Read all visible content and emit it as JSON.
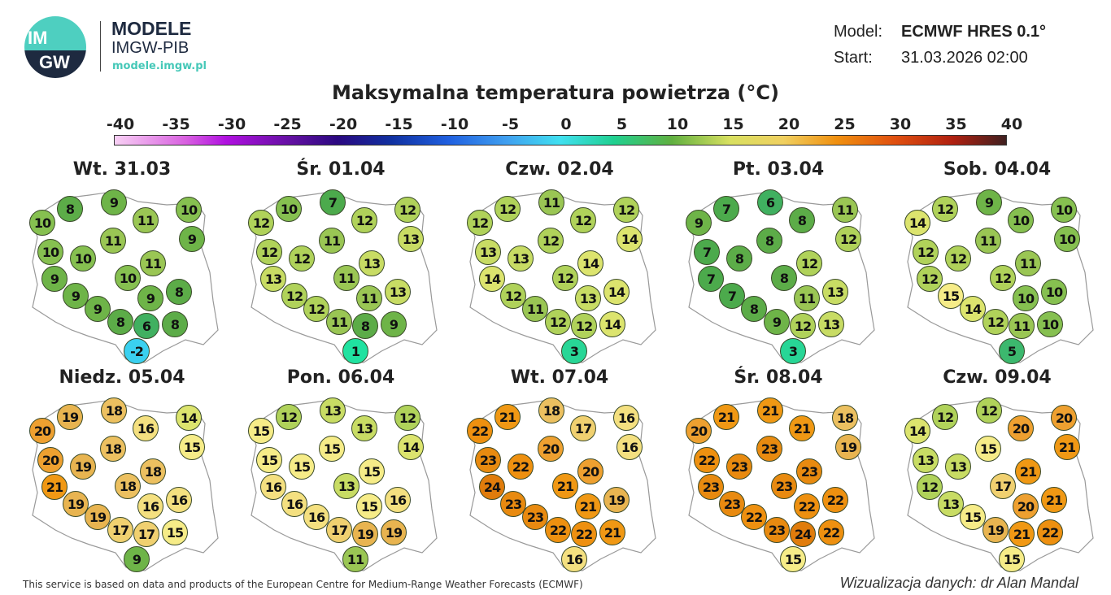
{
  "header": {
    "logo_text_top": "IM",
    "logo_text_bottom": "GW",
    "brand": "MODELE",
    "org": "IMGW-PIB",
    "url": "modele.imgw.pl",
    "model_label": "Model:",
    "model_value": "ECMWF HRES 0.1°",
    "start_label": "Start:",
    "start_value": "31.03.2026 02:00"
  },
  "title": "Maksymalna temperatura powietrza (°C)",
  "colorbar": {
    "ticks": [
      "-40",
      "-35",
      "-30",
      "-25",
      "-20",
      "-15",
      "-10",
      "-5",
      "0",
      "5",
      "10",
      "15",
      "20",
      "25",
      "30",
      "35",
      "40"
    ]
  },
  "panels": [
    {
      "label": "Wt. 31.03",
      "values": [
        8,
        9,
        10,
        11,
        10,
        11,
        9,
        10,
        10,
        11,
        9,
        10,
        9,
        9,
        8,
        9,
        8,
        6,
        8,
        -2
      ]
    },
    {
      "label": "Śr. 01.04",
      "values": [
        10,
        7,
        12,
        12,
        12,
        11,
        13,
        12,
        12,
        13,
        13,
        11,
        12,
        11,
        13,
        12,
        11,
        8,
        9,
        1
      ]
    },
    {
      "label": "Czw. 02.04",
      "values": [
        12,
        11,
        12,
        12,
        12,
        12,
        14,
        13,
        13,
        14,
        14,
        12,
        12,
        13,
        14,
        11,
        12,
        12,
        14,
        3
      ]
    },
    {
      "label": "Pt. 03.04",
      "values": [
        7,
        6,
        9,
        8,
        11,
        8,
        12,
        7,
        8,
        12,
        7,
        8,
        7,
        11,
        13,
        8,
        9,
        12,
        13,
        3
      ]
    },
    {
      "label": "Sob. 04.04",
      "values": [
        12,
        9,
        14,
        10,
        10,
        11,
        10,
        12,
        12,
        11,
        12,
        12,
        15,
        10,
        10,
        14,
        12,
        11,
        10,
        5
      ]
    },
    {
      "label": "Niedz. 05.04",
      "values": [
        19,
        18,
        20,
        16,
        14,
        18,
        15,
        20,
        19,
        18,
        21,
        18,
        19,
        16,
        16,
        19,
        17,
        17,
        15,
        9
      ]
    },
    {
      "label": "Pon. 06.04",
      "values": [
        12,
        13,
        15,
        13,
        12,
        15,
        14,
        15,
        15,
        15,
        16,
        13,
        16,
        15,
        16,
        16,
        17,
        19,
        19,
        11
      ]
    },
    {
      "label": "Wt. 07.04",
      "values": [
        21,
        18,
        22,
        17,
        16,
        20,
        16,
        23,
        22,
        20,
        24,
        21,
        23,
        21,
        19,
        23,
        22,
        22,
        21,
        16
      ]
    },
    {
      "label": "Śr. 08.04",
      "values": [
        21,
        21,
        20,
        21,
        18,
        23,
        19,
        22,
        23,
        23,
        23,
        23,
        23,
        22,
        22,
        22,
        23,
        24,
        22,
        15
      ]
    },
    {
      "label": "Czw. 09.04",
      "values": [
        12,
        12,
        14,
        20,
        20,
        15,
        21,
        13,
        13,
        21,
        12,
        17,
        13,
        20,
        21,
        15,
        19,
        21,
        22,
        15
      ]
    }
  ],
  "footer": {
    "disclaimer": "This service is based on data and products of the European Centre for Medium-Range Weather Forecasts (ECMWF)",
    "credit": "Wizualizacja danych: dr Alan Mandal"
  }
}
